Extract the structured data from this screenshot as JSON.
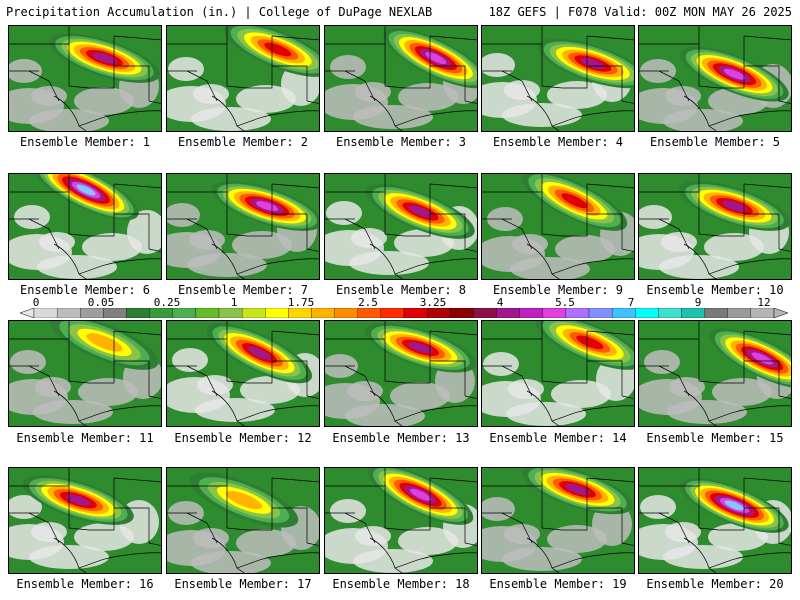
{
  "header": {
    "left": "Precipitation Accumulation (in.) | College of DuPage NEXLAB",
    "right": "18Z GEFS | F078 Valid: 00Z MON MAY 26 2025"
  },
  "members": [
    {
      "label": "Ensemble Member: 1",
      "peak": 4.5,
      "core": [
        0.62,
        0.3
      ]
    },
    {
      "label": "Ensemble Member: 2",
      "peak": 3.5,
      "core": [
        0.72,
        0.22
      ]
    },
    {
      "label": "Ensemble Member: 3",
      "peak": 5.0,
      "core": [
        0.72,
        0.3
      ]
    },
    {
      "label": "Ensemble Member: 4",
      "peak": 4.2,
      "core": [
        0.72,
        0.35
      ]
    },
    {
      "label": "Ensemble Member: 5",
      "peak": 5.0,
      "core": [
        0.62,
        0.45
      ]
    },
    {
      "label": "Ensemble Member: 6",
      "peak": 7.0,
      "core": [
        0.5,
        0.15
      ]
    },
    {
      "label": "Ensemble Member: 7",
      "peak": 5.0,
      "core": [
        0.65,
        0.3
      ]
    },
    {
      "label": "Ensemble Member: 8",
      "peak": 4.5,
      "core": [
        0.62,
        0.35
      ]
    },
    {
      "label": "Ensemble Member: 9",
      "peak": 3.8,
      "core": [
        0.6,
        0.25
      ]
    },
    {
      "label": "Ensemble Member: 10",
      "peak": 4.0,
      "core": [
        0.62,
        0.3
      ]
    },
    {
      "label": "Ensemble Member: 11",
      "peak": 2.2,
      "core": [
        0.62,
        0.2
      ]
    },
    {
      "label": "Ensemble Member: 12",
      "peak": 4.0,
      "core": [
        0.6,
        0.3
      ]
    },
    {
      "label": "Ensemble Member: 13",
      "peak": 4.8,
      "core": [
        0.62,
        0.25
      ]
    },
    {
      "label": "Ensemble Member: 14",
      "peak": 3.5,
      "core": [
        0.7,
        0.2
      ]
    },
    {
      "label": "Ensemble Member: 15",
      "peak": 5.5,
      "core": [
        0.8,
        0.35
      ]
    },
    {
      "label": "Ensemble Member: 16",
      "peak": 4.5,
      "core": [
        0.45,
        0.3
      ]
    },
    {
      "label": "Ensemble Member: 17",
      "peak": 2.0,
      "core": [
        0.5,
        0.3
      ]
    },
    {
      "label": "Ensemble Member: 18",
      "peak": 5.5,
      "core": [
        0.62,
        0.25
      ]
    },
    {
      "label": "Ensemble Member: 19",
      "peak": 4.5,
      "core": [
        0.62,
        0.2
      ]
    },
    {
      "label": "Ensemble Member: 20",
      "peak": 7.0,
      "core": [
        0.62,
        0.35
      ]
    }
  ],
  "colorbar": {
    "tick_labels": [
      "0",
      "0.05",
      "0.25",
      "1",
      "1.75",
      "2.5",
      "3.25",
      "4",
      "5.5",
      "7",
      "9",
      "12"
    ],
    "colors": [
      "#d9d9d9",
      "#bdbdbd",
      "#9e9e9e",
      "#808080",
      "#2e7d32",
      "#3a9a3a",
      "#4caf50",
      "#66bb2a",
      "#8bc34a",
      "#c6e619",
      "#ffff00",
      "#ffd600",
      "#ffb300",
      "#ff8c00",
      "#ff5a00",
      "#ff2a00",
      "#e00000",
      "#b00000",
      "#8b0000",
      "#8b1048",
      "#a0188c",
      "#c020c0",
      "#e040e0",
      "#b070ff",
      "#8090ff",
      "#40c0ff",
      "#00ffff",
      "#40e0d0",
      "#20c0b0",
      "#7a7a7a",
      "#9a9a9a",
      "#b5b5b5"
    ]
  }
}
